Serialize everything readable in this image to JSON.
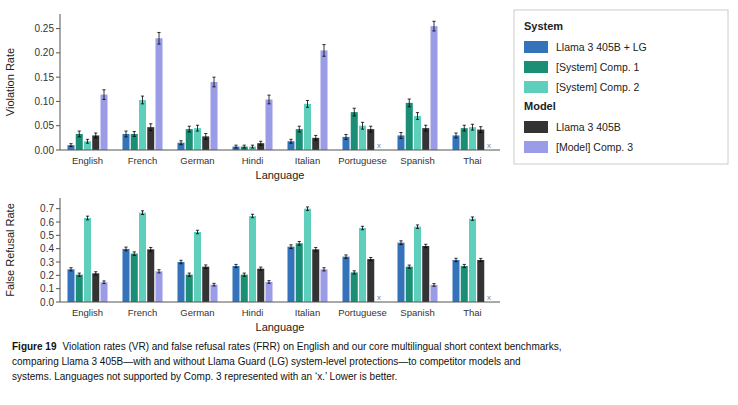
{
  "chart_data": [
    {
      "type": "bar",
      "x_label": "Language",
      "y_label": "Violation Rate",
      "categories": [
        "English",
        "French",
        "German",
        "Hindi",
        "Italian",
        "Portuguese",
        "Spanish",
        "Thai"
      ],
      "series": [
        {
          "name": "Llama 3 405B + LG",
          "group": "System",
          "color": "#3473BA",
          "values": [
            0.01,
            0.033,
            0.015,
            0.007,
            0.018,
            0.027,
            0.03,
            0.03
          ],
          "errors": [
            0.003,
            0.006,
            0.004,
            0.003,
            0.004,
            0.005,
            0.006,
            0.005
          ]
        },
        {
          "name": "[System] Comp. 1",
          "group": "System",
          "color": "#1A8F75",
          "values": [
            0.033,
            0.033,
            0.043,
            0.007,
            0.043,
            0.078,
            0.097,
            0.045
          ],
          "errors": [
            0.006,
            0.005,
            0.006,
            0.003,
            0.006,
            0.008,
            0.008,
            0.006
          ]
        },
        {
          "name": "[System] Comp. 2",
          "group": "System",
          "color": "#5DCFBB",
          "values": [
            0.018,
            0.103,
            0.045,
            0.007,
            0.095,
            0.05,
            0.07,
            0.047
          ],
          "errors": [
            0.004,
            0.008,
            0.006,
            0.003,
            0.007,
            0.007,
            0.007,
            0.006
          ]
        },
        {
          "name": "Llama 3 405B",
          "group": "Model",
          "color": "#333333",
          "values": [
            0.03,
            0.047,
            0.028,
            0.014,
            0.025,
            0.043,
            0.045,
            0.042
          ],
          "errors": [
            0.005,
            0.007,
            0.006,
            0.004,
            0.005,
            0.006,
            0.006,
            0.006
          ]
        },
        {
          "name": "[Model] Comp. 3",
          "group": "Model",
          "color": "#9B9CE8",
          "values": [
            0.114,
            0.23,
            0.14,
            0.104,
            0.205,
            null,
            0.255,
            null
          ],
          "errors": [
            0.01,
            0.012,
            0.01,
            0.009,
            0.012,
            null,
            0.01,
            null
          ]
        }
      ],
      "missing_label": "x",
      "ylim": [
        0,
        0.28
      ],
      "yticks": [
        {
          "value": 0,
          "label": "0.00"
        },
        0.05,
        {
          "value": 0.1,
          "label": "0.10"
        },
        0.15,
        {
          "value": 0.2,
          "label": "0.20"
        },
        0.25
      ],
      "grid": false,
      "legend": "right"
    },
    {
      "type": "bar",
      "x_label": "Language",
      "y_label": "False Refusal Rate",
      "categories": [
        "English",
        "French",
        "German",
        "Hindi",
        "Italian",
        "Portuguese",
        "Spanish",
        "Thai"
      ],
      "series": [
        {
          "color": "#3473BA",
          "values": [
            0.245,
            0.398,
            0.3,
            0.27,
            0.415,
            0.34,
            0.445,
            0.315
          ],
          "errors": [
            0.012,
            0.014,
            0.013,
            0.012,
            0.014,
            0.013,
            0.014,
            0.013
          ]
        },
        {
          "color": "#1A8F75",
          "values": [
            0.205,
            0.363,
            0.205,
            0.205,
            0.44,
            0.222,
            0.265,
            0.27
          ],
          "errors": [
            0.012,
            0.013,
            0.012,
            0.012,
            0.014,
            0.012,
            0.012,
            0.012
          ]
        },
        {
          "color": "#5DCFBB",
          "values": [
            0.63,
            0.67,
            0.525,
            0.645,
            0.7,
            0.555,
            0.565,
            0.625
          ],
          "errors": [
            0.014,
            0.014,
            0.013,
            0.013,
            0.013,
            0.013,
            0.013,
            0.013
          ]
        },
        {
          "color": "#333333",
          "values": [
            0.215,
            0.395,
            0.265,
            0.25,
            0.395,
            0.322,
            0.42,
            0.315
          ],
          "errors": [
            0.012,
            0.014,
            0.013,
            0.012,
            0.014,
            0.012,
            0.013,
            0.012
          ]
        },
        {
          "color": "#9B9CE8",
          "values": [
            0.148,
            0.23,
            0.13,
            0.15,
            0.245,
            null,
            0.128,
            null
          ],
          "errors": [
            0.01,
            0.012,
            0.01,
            0.01,
            0.012,
            null,
            0.01,
            null
          ]
        }
      ],
      "missing_label": "x",
      "ylim": [
        0,
        0.78
      ],
      "yticks": [
        {
          "value": 0,
          "label": "0.0"
        },
        0.1,
        0.2,
        0.3,
        0.4,
        0.5,
        0.6,
        0.7
      ],
      "grid": false
    }
  ],
  "caption": {
    "title": "Figure 19",
    "lines": [
      "Violation rates (VR) and false refusal rates (FRR) on English and our core multilingual short context benchmarks,",
      "comparing Llama 3 405B—with and without Llama Guard (LG) system-level protections—to competitor models and",
      "systems. Languages not supported by Comp. 3 represented with an ‘x.’ Lower is better."
    ]
  }
}
